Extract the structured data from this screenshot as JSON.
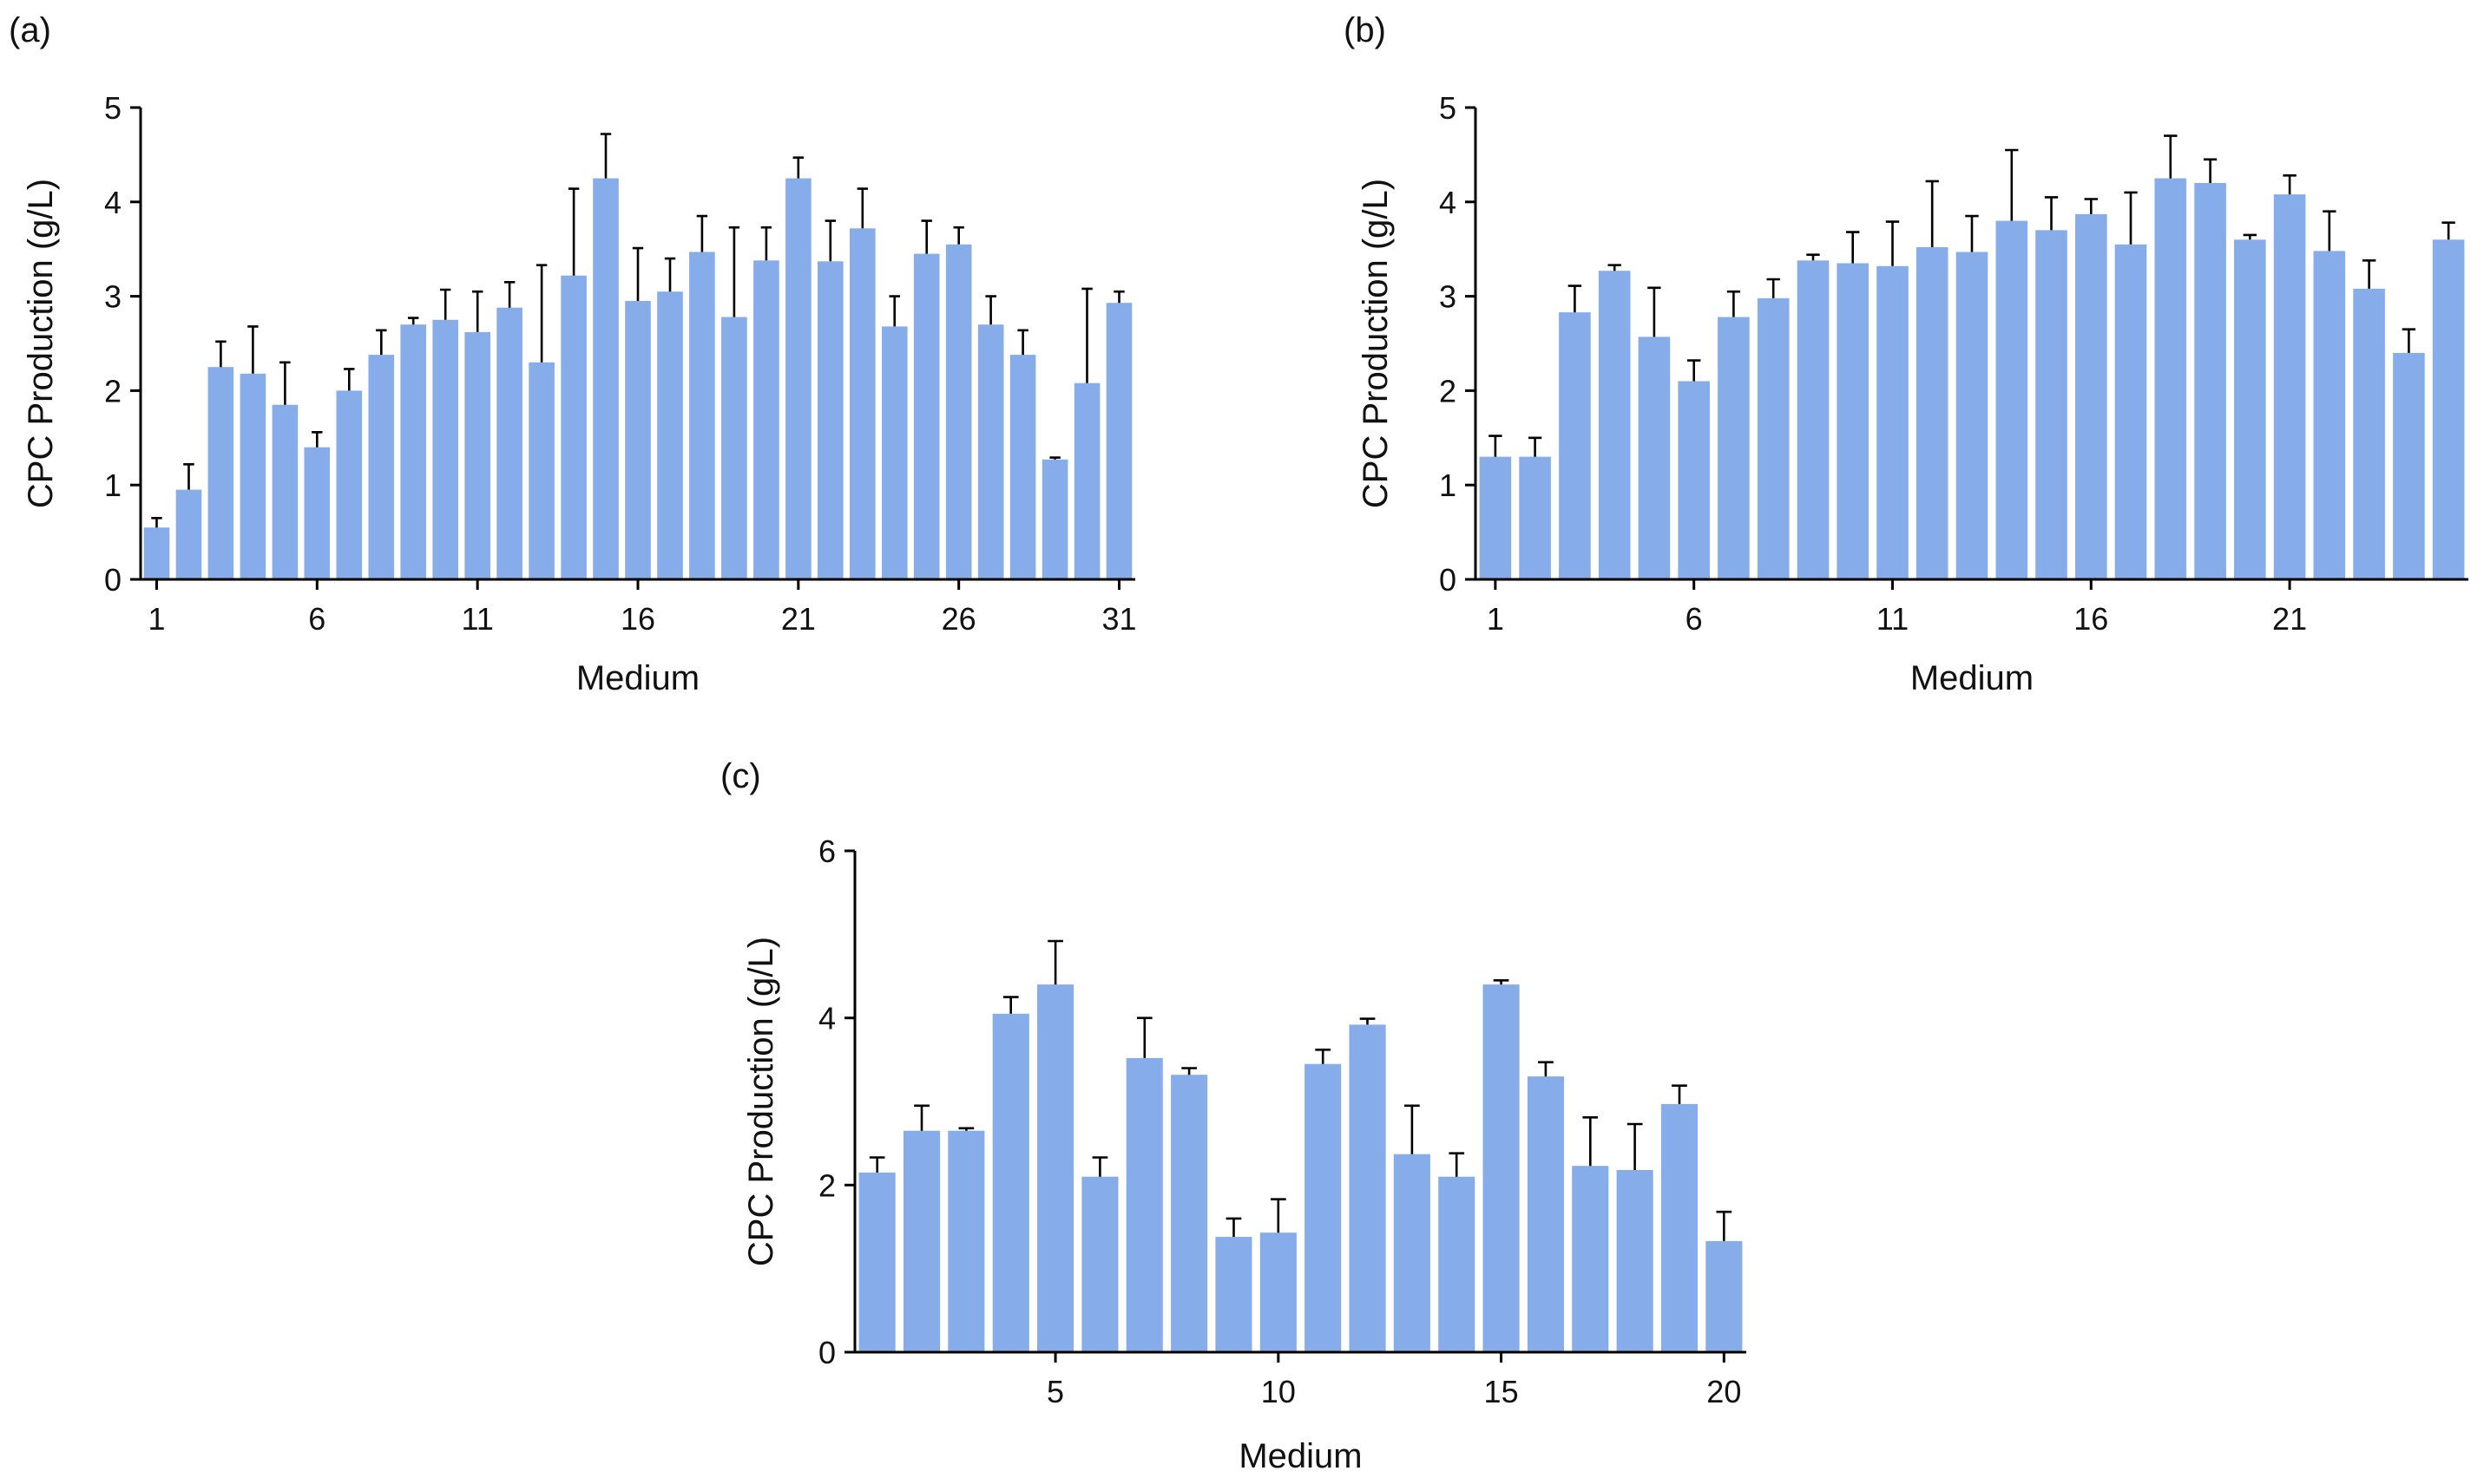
{
  "figure": {
    "bar_color": "#86acea",
    "error_color": "#000000"
  },
  "chart_data": [
    {
      "type": "bar",
      "panel": "(a)",
      "xlabel": "Medium",
      "ylabel": "CPC Production (g/L)",
      "ylim": [
        0,
        5
      ],
      "yticks": [
        0,
        1,
        2,
        3,
        4,
        5
      ],
      "xticks": [
        1,
        6,
        11,
        16,
        21,
        26,
        31
      ],
      "categories": [
        1,
        2,
        3,
        4,
        5,
        6,
        7,
        8,
        9,
        10,
        11,
        12,
        13,
        14,
        15,
        16,
        17,
        18,
        19,
        20,
        21,
        22,
        23,
        24,
        25,
        26,
        27,
        28,
        29,
        30,
        31
      ],
      "values": [
        0.55,
        0.95,
        2.25,
        2.18,
        1.85,
        1.4,
        2.0,
        2.38,
        2.7,
        2.75,
        2.62,
        2.88,
        2.3,
        3.22,
        4.25,
        2.95,
        3.05,
        3.47,
        2.78,
        3.38,
        4.25,
        3.37,
        3.72,
        2.68,
        3.45,
        3.55,
        2.7,
        2.38,
        1.27,
        2.08,
        2.93
      ],
      "errors": [
        0.1,
        0.27,
        0.27,
        0.5,
        0.45,
        0.16,
        0.23,
        0.26,
        0.07,
        0.32,
        0.43,
        0.27,
        1.03,
        0.92,
        0.47,
        0.56,
        0.35,
        0.38,
        0.95,
        0.35,
        0.22,
        0.43,
        0.42,
        0.32,
        0.35,
        0.18,
        0.3,
        0.26,
        0.02,
        1.0,
        0.12
      ],
      "grid": false,
      "legend": "none"
    },
    {
      "type": "bar",
      "panel": "(b)",
      "xlabel": "Medium",
      "ylabel": "CPC Production (g/L)",
      "ylim": [
        0,
        5
      ],
      "yticks": [
        0,
        1,
        2,
        3,
        4,
        5
      ],
      "xticks": [
        1,
        6,
        11,
        16,
        21
      ],
      "categories": [
        1,
        2,
        3,
        4,
        5,
        6,
        7,
        8,
        9,
        10,
        11,
        12,
        13,
        14,
        15,
        16,
        17,
        18,
        19,
        20,
        21,
        22,
        23,
        24,
        25
      ],
      "values": [
        1.3,
        1.3,
        2.83,
        3.27,
        2.57,
        2.1,
        2.78,
        2.98,
        3.38,
        3.35,
        3.32,
        3.52,
        3.47,
        3.8,
        3.7,
        3.87,
        3.55,
        4.25,
        4.2,
        3.6,
        4.08,
        3.48,
        3.08,
        2.4,
        3.6
      ],
      "errors": [
        0.22,
        0.2,
        0.28,
        0.06,
        0.52,
        0.22,
        0.27,
        0.2,
        0.06,
        0.33,
        0.47,
        0.7,
        0.38,
        0.75,
        0.35,
        0.16,
        0.55,
        0.45,
        0.25,
        0.05,
        0.2,
        0.42,
        0.3,
        0.25,
        0.18
      ],
      "grid": false,
      "legend": "none"
    },
    {
      "type": "bar",
      "panel": "(c)",
      "xlabel": "Medium",
      "ylabel": "CPC Production (g/L)",
      "ylim": [
        0,
        6
      ],
      "yticks": [
        0,
        2,
        4,
        6
      ],
      "xticks": [
        5,
        10,
        15,
        20
      ],
      "categories": [
        1,
        2,
        3,
        4,
        5,
        6,
        7,
        8,
        9,
        10,
        11,
        12,
        13,
        14,
        15,
        16,
        17,
        18,
        19,
        20
      ],
      "values": [
        2.15,
        2.65,
        2.65,
        4.05,
        4.4,
        2.1,
        3.52,
        3.32,
        1.38,
        1.43,
        3.45,
        3.92,
        2.37,
        2.1,
        4.4,
        3.3,
        2.23,
        2.18,
        2.97,
        1.33
      ],
      "errors": [
        0.18,
        0.3,
        0.03,
        0.2,
        0.52,
        0.23,
        0.48,
        0.08,
        0.22,
        0.4,
        0.17,
        0.07,
        0.58,
        0.28,
        0.05,
        0.17,
        0.58,
        0.55,
        0.22,
        0.35
      ],
      "grid": false,
      "legend": "none"
    }
  ]
}
